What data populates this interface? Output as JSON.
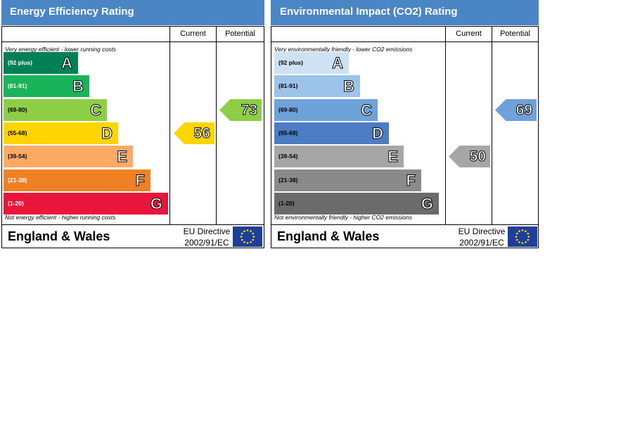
{
  "chart_data": [
    {
      "type": "bar",
      "title": "Energy Efficiency Rating",
      "columns": [
        "Current",
        "Potential"
      ],
      "top_note": "Very energy efficient - lower running costs",
      "bottom_note": "Not energy efficient - higher running costs",
      "bands": [
        {
          "range": "(92 plus)",
          "letter": "A",
          "color": "#008054"
        },
        {
          "range": "(81-91)",
          "letter": "B",
          "color": "#19b459"
        },
        {
          "range": "(69-80)",
          "letter": "C",
          "color": "#8dce46"
        },
        {
          "range": "(55-68)",
          "letter": "D",
          "color": "#ffd500"
        },
        {
          "range": "(39-54)",
          "letter": "E",
          "color": "#fcaa65"
        },
        {
          "range": "(21-38)",
          "letter": "F",
          "color": "#ef8023"
        },
        {
          "range": "(1-20)",
          "letter": "G",
          "color": "#e9153b"
        }
      ],
      "current": {
        "value": 56,
        "band": "D",
        "color": "#ffd500"
      },
      "potential": {
        "value": 73,
        "band": "C",
        "color": "#8dce46"
      },
      "footer": {
        "region": "England & Wales",
        "directive_line1": "EU Directive",
        "directive_line2": "2002/91/EC"
      }
    },
    {
      "type": "bar",
      "title": "Environmental Impact (CO2) Rating",
      "columns": [
        "Current",
        "Potential"
      ],
      "top_note": "Very environmentally friendly - lower CO2 emissions",
      "bottom_note": "Not environmentally friendly - higher CO2 emissions",
      "bands": [
        {
          "range": "(92 plus)",
          "letter": "A",
          "color": "#cfe2f3"
        },
        {
          "range": "(81-91)",
          "letter": "B",
          "color": "#9cc3ea"
        },
        {
          "range": "(69-80)",
          "letter": "C",
          "color": "#6fa1da"
        },
        {
          "range": "(55-68)",
          "letter": "D",
          "color": "#4b7cc4"
        },
        {
          "range": "(39-54)",
          "letter": "E",
          "color": "#a6a6a6"
        },
        {
          "range": "(21-38)",
          "letter": "F",
          "color": "#8a8a8a"
        },
        {
          "range": "(1-20)",
          "letter": "G",
          "color": "#6b6b6b"
        }
      ],
      "current": {
        "value": 50,
        "band": "E",
        "color": "#a6a6a6"
      },
      "potential": {
        "value": 69,
        "band": "C",
        "color": "#6fa1da"
      },
      "footer": {
        "region": "England & Wales",
        "directive_line1": "EU Directive",
        "directive_line2": "2002/91/EC"
      }
    }
  ]
}
